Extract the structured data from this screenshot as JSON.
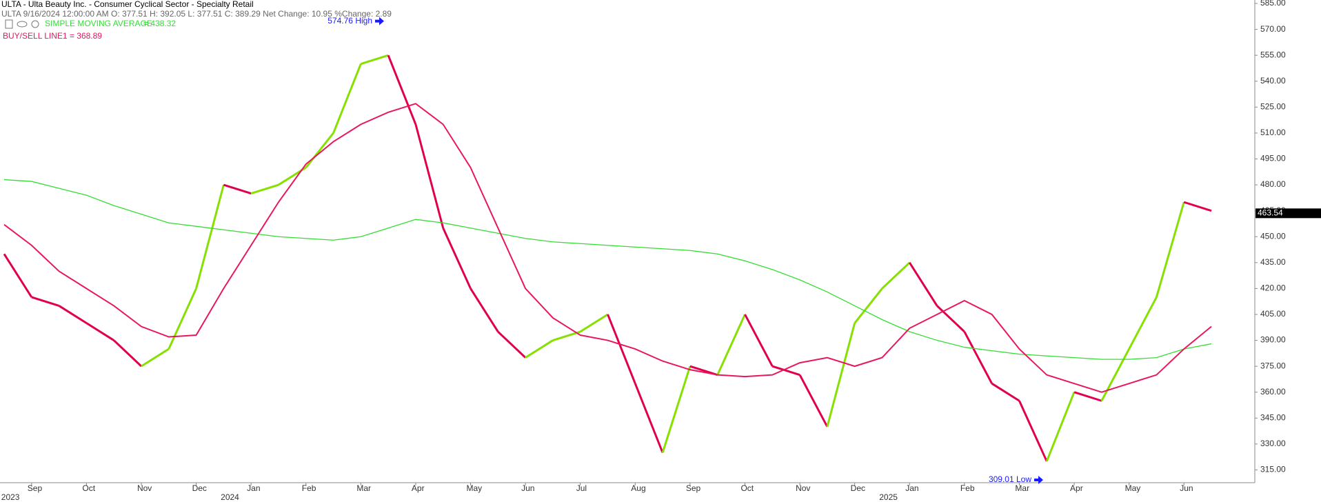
{
  "chart_data": {
    "type": "line",
    "title": "ULTA - Ulta Beauty Inc. - Consumer Cyclical Sector - Specialty Retail",
    "subtitle": "ULTA 9/16/2024 12:00:00 AM O: 377.51 H: 392.05 L: 377.51 C: 389.29 Net Change: 10.95 %Change: 2.89",
    "categories": [
      null,
      "Sep",
      null,
      "Oct",
      null,
      "Nov",
      null,
      "Dec",
      null,
      "Jan",
      null,
      "Feb",
      null,
      "Mar",
      null,
      "Apr",
      null,
      "May",
      null,
      "Jun",
      null,
      "Jul",
      null,
      "Aug",
      null,
      "Sep",
      null,
      "Oct",
      null,
      "Nov",
      null,
      "Dec",
      null,
      "Jan",
      null,
      "Feb",
      null,
      "Mar",
      null,
      "Apr",
      null,
      "May",
      null,
      "Jun",
      null
    ],
    "years": [
      null,
      "2023",
      null,
      null,
      null,
      null,
      null,
      null,
      null,
      "2024",
      null,
      null,
      null,
      null,
      null,
      null,
      null,
      null,
      null,
      null,
      null,
      null,
      null,
      null,
      null,
      null,
      null,
      null,
      null,
      null,
      null,
      null,
      null,
      "2025",
      null,
      null,
      null,
      null,
      null,
      null,
      null,
      null,
      null,
      null,
      null
    ],
    "series": [
      {
        "name": "ULTA",
        "up_color": "#86e000",
        "down_color": "#e0004f",
        "values": [
          440,
          415,
          410,
          400,
          390,
          375,
          385,
          420,
          480,
          475,
          480,
          490,
          510,
          550,
          555,
          515,
          455,
          420,
          395,
          380,
          390,
          395,
          405,
          365,
          325,
          375,
          370,
          405,
          375,
          370,
          340,
          400,
          420,
          435,
          410,
          395,
          365,
          355,
          320,
          360,
          355,
          385,
          415,
          470,
          465
        ]
      },
      {
        "name": "SIMPLE MOVING AVERAGE",
        "legend_value": "= 438.32",
        "color": "#33dd33",
        "values": [
          483,
          482,
          478,
          474,
          468,
          463,
          458,
          456,
          454,
          452,
          450,
          449,
          448,
          450,
          455,
          460,
          458,
          455,
          452,
          449,
          447,
          446,
          445,
          444,
          443,
          442,
          440,
          436,
          431,
          425,
          418,
          410,
          402,
          395,
          390,
          386,
          384,
          382,
          381,
          380,
          379,
          379,
          380,
          385,
          388
        ]
      },
      {
        "name": "BUY/SELL LINE1 = 368.89",
        "color": "#e8175d",
        "values": [
          457,
          445,
          430,
          420,
          410,
          398,
          392,
          393,
          420,
          445,
          470,
          492,
          505,
          515,
          522,
          527,
          515,
          490,
          455,
          420,
          403,
          393,
          390,
          385,
          378,
          373,
          370,
          369,
          370,
          377,
          380,
          375,
          380,
          397,
          405,
          413,
          405,
          385,
          370,
          365,
          360,
          365,
          370,
          385,
          398
        ]
      }
    ],
    "ylim": [
      308,
      587
    ],
    "yticks": [
      {
        "value": 315,
        "label": "315.00"
      },
      {
        "value": 330,
        "label": "330.00"
      },
      {
        "value": 345,
        "label": "345.00"
      },
      {
        "value": 360,
        "label": "360.00"
      },
      {
        "value": 375,
        "label": "375.00"
      },
      {
        "value": 390,
        "label": "390.00"
      },
      {
        "value": 405,
        "label": "405.00"
      },
      {
        "value": 420,
        "label": "420.00"
      },
      {
        "value": 435,
        "label": "435.00"
      },
      {
        "value": 450,
        "label": "450.00"
      },
      {
        "value": 465,
        "label": "465.00"
      },
      {
        "value": 480,
        "label": "480.00"
      },
      {
        "value": 495,
        "label": "495.00"
      },
      {
        "value": 510,
        "label": "510.00"
      },
      {
        "value": 525,
        "label": "525.00"
      },
      {
        "value": 540,
        "label": "540.00"
      },
      {
        "value": 555,
        "label": "555.00"
      },
      {
        "value": 570,
        "label": "570.00"
      },
      {
        "value": 585,
        "label": "585.00"
      }
    ],
    "high": {
      "value": 574.76,
      "label": "574.76 High"
    },
    "low": {
      "value": 309.01,
      "label": "309.01 Low"
    },
    "last_price": 463.54
  }
}
